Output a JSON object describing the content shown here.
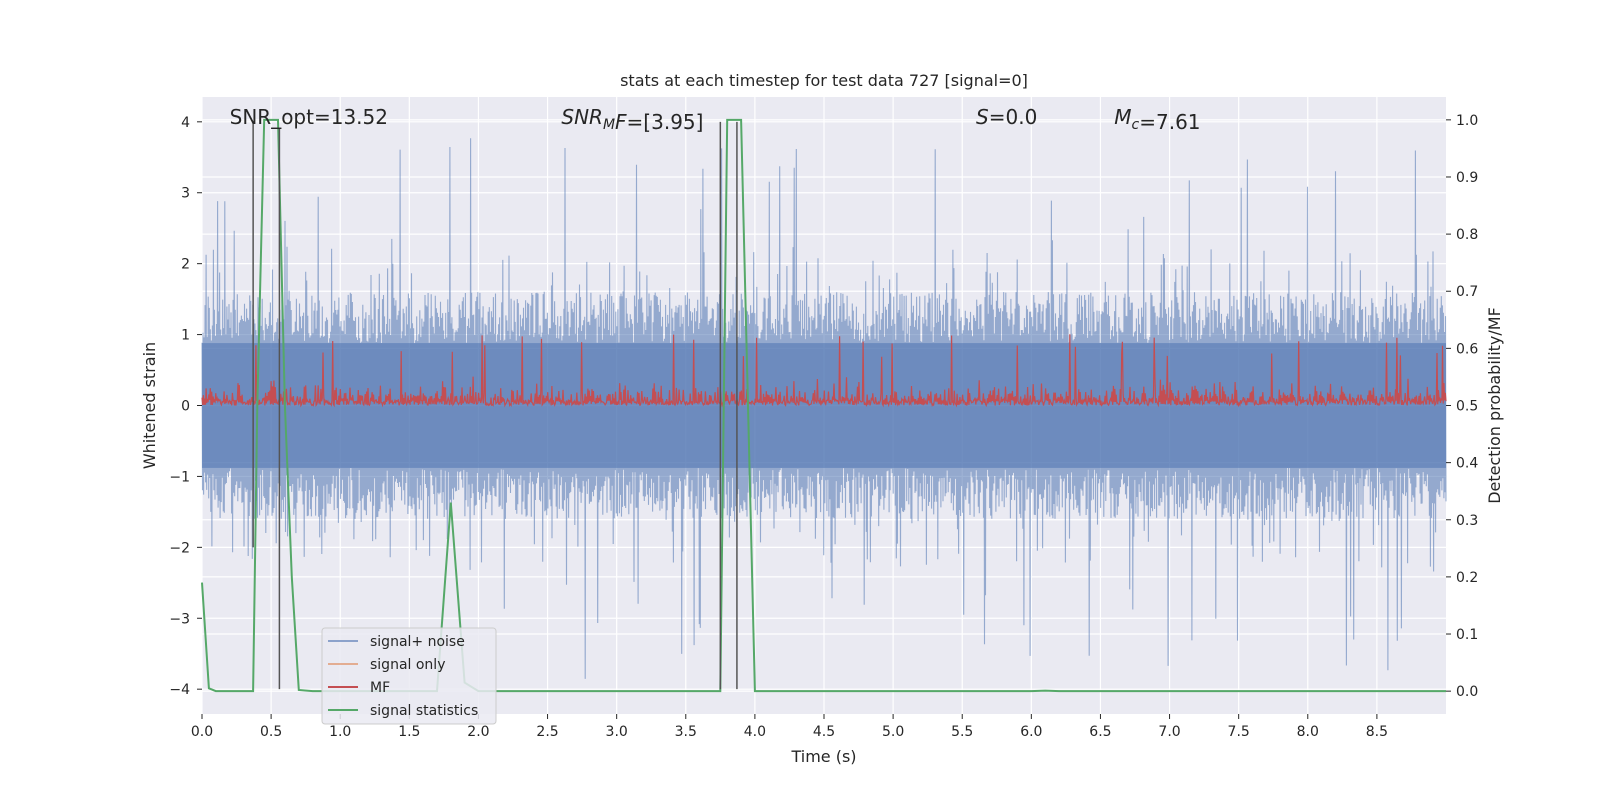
{
  "chart_data": {
    "type": "line",
    "title": "stats at each timestep for test data 727 [signal=0]",
    "xlabel": "Time (s)",
    "ylabel": "Whitened strain",
    "ylabel_right": "Detection probability/MF",
    "xlim": [
      0.0,
      9.0
    ],
    "ylim": [
      -4.35,
      4.35
    ],
    "ylim_right": [
      -0.04,
      1.04
    ],
    "x_ticks": [
      0.0,
      0.5,
      1.0,
      1.5,
      2.0,
      2.5,
      3.0,
      3.5,
      4.0,
      4.5,
      5.0,
      5.5,
      6.0,
      6.5,
      7.0,
      7.5,
      8.0,
      8.5
    ],
    "x_tick_labels": [
      "0.0",
      "0.5",
      "1.0",
      "1.5",
      "2.0",
      "2.5",
      "3.0",
      "3.5",
      "4.0",
      "4.5",
      "5.0",
      "5.5",
      "6.0",
      "6.5",
      "7.0",
      "7.5",
      "8.0",
      "8.5"
    ],
    "y_ticks": [
      -4,
      -3,
      -2,
      -1,
      0,
      1,
      2,
      3,
      4
    ],
    "y_tick_labels": [
      "−4",
      "−3",
      "−2",
      "−1",
      "0",
      "1",
      "2",
      "3",
      "4"
    ],
    "y_ticks_right": [
      0.0,
      0.1,
      0.2,
      0.3,
      0.4,
      0.5,
      0.6,
      0.7,
      0.8,
      0.9,
      1.0
    ],
    "y_tick_labels_right": [
      "0.0",
      "0.1",
      "0.2",
      "0.3",
      "0.4",
      "0.5",
      "0.6",
      "0.7",
      "0.8",
      "0.9",
      "1.0"
    ],
    "grid": true,
    "legend_placement": "lower-left",
    "annotations": [
      {
        "text": "SNR_opt=13.52",
        "x": 0.2
      },
      {
        "text_parts": [
          {
            "t": "SNR",
            "italic": true
          },
          {
            "t": "M",
            "italic": true,
            "sub": true
          },
          {
            "t": "F",
            "italic": true
          },
          {
            "t": "=[3.95]",
            "italic": false
          }
        ],
        "x": 2.6
      },
      {
        "text_parts": [
          {
            "t": "S",
            "italic": true
          },
          {
            "t": "=0.0",
            "italic": false
          }
        ],
        "x": 5.6
      },
      {
        "text_parts": [
          {
            "t": "M",
            "italic": true
          },
          {
            "t": "c",
            "italic": true,
            "sub": true
          },
          {
            "t": "=7.61",
            "italic": false
          }
        ],
        "x": 6.6
      }
    ],
    "vertical_markers": [
      {
        "x": 0.37,
        "y_top": 4.0,
        "y_bottom": -2.0
      },
      {
        "x": 0.56,
        "y_top": 3.9,
        "y_bottom": -4.0
      },
      {
        "x": 3.75,
        "y_top": 4.0,
        "y_bottom": -4.0
      },
      {
        "x": 3.87,
        "y_top": 4.0,
        "y_bottom": -4.0
      }
    ],
    "series": [
      {
        "name": "signal+ noise",
        "axis": "left",
        "color": "#4c72b0",
        "kind": "noise",
        "x_range": [
          0.0,
          9.0
        ],
        "envelope": {
          "typical_high": 1.6,
          "typical_low": -1.6,
          "spike_max": 3.8,
          "spike_min": -3.9
        },
        "points": 2400
      },
      {
        "name": "signal only",
        "axis": "left",
        "color": "#dd8452",
        "values": []
      },
      {
        "name": "MF",
        "axis": "right",
        "color": "#c44e52",
        "kind": "noise",
        "x_range": [
          0.0,
          9.0
        ],
        "envelope": {
          "baseline": 0.5,
          "typical_high": 0.585,
          "spike_max": 0.625
        },
        "points": 1800
      },
      {
        "name": "signal statistics",
        "axis": "right",
        "color": "#55a868",
        "x": [
          0.0,
          0.05,
          0.1,
          0.2,
          0.3,
          0.37,
          0.4,
          0.45,
          0.5,
          0.55,
          0.6,
          0.65,
          0.7,
          0.8,
          1.0,
          1.2,
          1.4,
          1.6,
          1.7,
          1.8,
          1.9,
          2.0,
          2.2,
          2.5,
          3.0,
          3.5,
          3.75,
          3.8,
          3.85,
          3.9,
          3.95,
          4.0,
          4.5,
          5.0,
          5.5,
          6.0,
          6.1,
          6.2,
          6.5,
          7.0,
          8.0,
          9.0
        ],
        "y": [
          0.19,
          0.005,
          0.0,
          0.0,
          0.0,
          0.0,
          0.5,
          1.0,
          1.0,
          1.0,
          0.5,
          0.2,
          0.002,
          0.0,
          0.0,
          0.0,
          0.0,
          0.0,
          0.0,
          0.33,
          0.015,
          0.0,
          0.0,
          0.0,
          0.0,
          0.0,
          0.0,
          1.0,
          1.0,
          1.0,
          0.5,
          0.0,
          0.0,
          0.0,
          0.0,
          0.0,
          0.001,
          0.0,
          0.0,
          0.0,
          0.0,
          0.0
        ]
      }
    ],
    "legend": [
      {
        "label": "signal+ noise",
        "color": "#4c72b0"
      },
      {
        "label": "signal only",
        "color": "#dd8452"
      },
      {
        "label": "MF",
        "color": "#c44e52"
      },
      {
        "label": "signal statistics",
        "color": "#55a868"
      }
    ]
  }
}
